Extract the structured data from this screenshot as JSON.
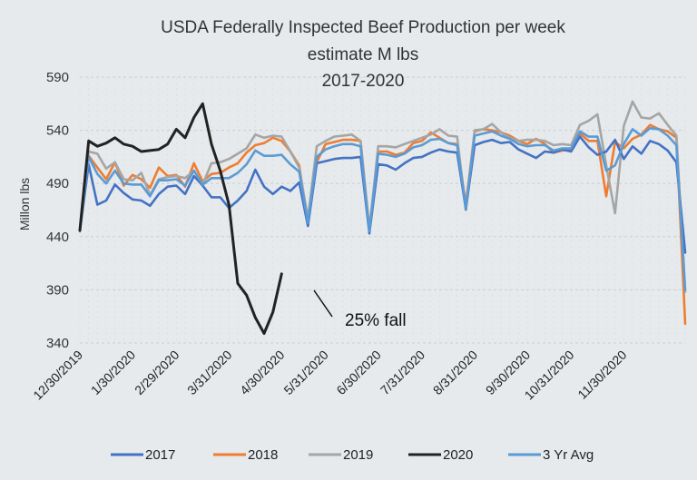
{
  "chart_data": {
    "type": "line",
    "title_lines": [
      "USDA Federally Inspected Beef Production per week",
      "estimate M lbs",
      "2017-2020"
    ],
    "xlabel": "",
    "ylabel": "Millon lbs",
    "ylim": [
      340,
      590
    ],
    "yticks": [
      340,
      390,
      440,
      490,
      540,
      590
    ],
    "x_tick_labels": [
      "12/30/2019",
      "1/30/2020",
      "2/29/2020",
      "3/31/2020",
      "4/30/2020",
      "5/31/2020",
      "6/30/2020",
      "7/31/2020",
      "8/31/2020",
      "9/30/2020",
      "10/31/2020",
      "11/30/2020"
    ],
    "grid": true,
    "legend_position": "bottom",
    "annotation": {
      "text": "25% fall"
    },
    "series": [
      {
        "name": "2017",
        "color": "#4472c4",
        "values": [
          445,
          508,
          470,
          474,
          489,
          481,
          475,
          474,
          469,
          480,
          487,
          488,
          480,
          497,
          488,
          477,
          477,
          467,
          474,
          483,
          503,
          487,
          480,
          487,
          483,
          491,
          450,
          509,
          511,
          513,
          514,
          514,
          515,
          443,
          508,
          507,
          503,
          509,
          514,
          515,
          519,
          522,
          520,
          519,
          466,
          526,
          529,
          531,
          528,
          529,
          522,
          518,
          514,
          520,
          519,
          522,
          520,
          534,
          524,
          517,
          520,
          531,
          513,
          525,
          518,
          530,
          527,
          521,
          510,
          425
        ]
      },
      {
        "name": "2018",
        "color": "#ed7d31",
        "values": [
          446,
          516,
          505,
          494,
          510,
          488,
          498,
          494,
          486,
          505,
          497,
          498,
          487,
          509,
          492,
          499,
          500,
          505,
          509,
          519,
          526,
          528,
          533,
          530,
          520,
          507,
          452,
          510,
          527,
          529,
          531,
          531,
          530,
          447,
          520,
          520,
          517,
          519,
          528,
          530,
          538,
          533,
          528,
          527,
          470,
          539,
          541,
          540,
          538,
          535,
          530,
          527,
          532,
          527,
          519,
          521,
          522,
          537,
          530,
          530,
          478,
          529,
          523,
          532,
          536,
          545,
          541,
          539,
          533,
          358
        ]
      },
      {
        "name": "2019",
        "color": "#a5a5a5",
        "values": [
          447,
          520,
          518,
          504,
          510,
          494,
          493,
          500,
          479,
          494,
          496,
          497,
          495,
          502,
          489,
          509,
          510,
          513,
          518,
          523,
          536,
          533,
          535,
          534,
          520,
          505,
          457,
          525,
          530,
          534,
          535,
          536,
          530,
          446,
          525,
          525,
          524,
          527,
          530,
          533,
          536,
          541,
          535,
          534,
          465,
          540,
          541,
          546,
          538,
          533,
          530,
          531,
          531,
          530,
          526,
          527,
          526,
          545,
          549,
          555,
          507,
          462,
          544,
          567,
          552,
          551,
          556,
          545,
          535,
          388
        ]
      },
      {
        "name": "2020",
        "color": "#222222",
        "values": [
          446,
          530,
          525,
          528,
          533,
          527,
          525,
          520,
          521,
          522,
          527,
          541,
          533,
          552,
          565,
          527,
          502,
          470,
          396,
          385,
          364,
          349,
          369,
          405
        ]
      },
      {
        "name": "3 Yr Avg",
        "color": "#5b9bd5",
        "values": [
          446,
          515,
          499,
          490,
          502,
          490,
          489,
          489,
          478,
          493,
          493,
          494,
          488,
          502,
          489,
          495,
          495,
          495,
          500,
          508,
          521,
          516,
          516,
          517,
          508,
          501,
          453,
          515,
          522,
          525,
          527,
          527,
          525,
          445,
          518,
          517,
          515,
          518,
          524,
          526,
          531,
          532,
          528,
          526,
          467,
          535,
          537,
          539,
          535,
          532,
          527,
          525,
          526,
          526,
          521,
          523,
          523,
          539,
          534,
          534,
          502,
          507,
          527,
          541,
          535,
          542,
          541,
          535,
          526,
          390
        ]
      }
    ]
  }
}
